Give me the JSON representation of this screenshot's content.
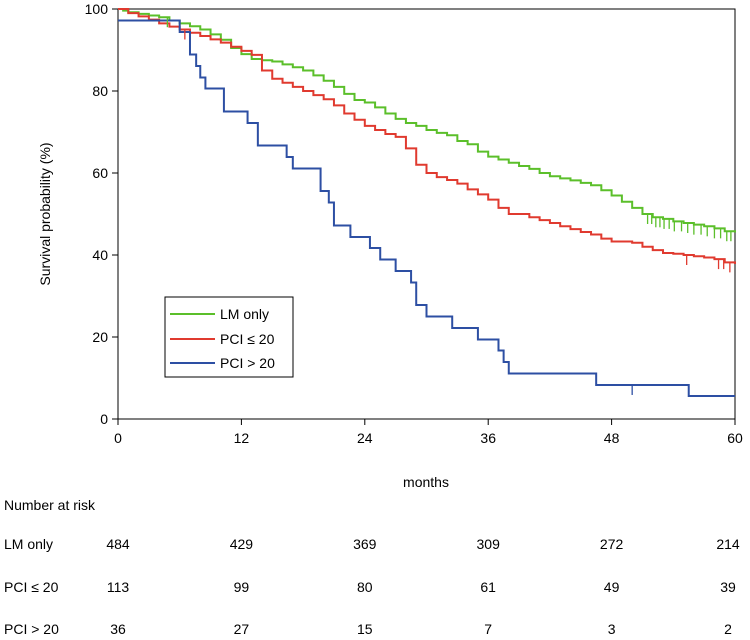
{
  "chart_data": {
    "type": "line",
    "xlabel": "months",
    "ylabel": "Survival probability (%)",
    "xlim": [
      0,
      60
    ],
    "ylim": [
      0,
      100
    ],
    "x_ticks": [
      0,
      12,
      24,
      36,
      48,
      60
    ],
    "y_ticks": [
      0,
      20,
      40,
      60,
      80,
      100
    ],
    "grid": false,
    "legend_position": "lower-left",
    "series": [
      {
        "name": "LM only",
        "color": "#5bbf2a",
        "steps": [
          [
            0,
            100
          ],
          [
            0.5,
            99.6
          ],
          [
            1,
            99.2
          ],
          [
            2,
            98.8
          ],
          [
            3,
            98.4
          ],
          [
            4,
            98
          ],
          [
            5,
            97.2
          ],
          [
            6,
            96.5
          ],
          [
            7,
            95.8
          ],
          [
            8,
            95
          ],
          [
            9,
            93.8
          ],
          [
            10,
            92.5
          ],
          [
            11,
            90.5
          ],
          [
            12,
            89
          ],
          [
            13,
            87.8
          ],
          [
            14,
            87.5
          ],
          [
            15,
            87.2
          ],
          [
            16,
            86.5
          ],
          [
            17,
            85.8
          ],
          [
            18,
            85
          ],
          [
            19,
            83.8
          ],
          [
            20,
            82.5
          ],
          [
            21,
            81
          ],
          [
            22,
            79.3
          ],
          [
            23,
            77.8
          ],
          [
            24,
            77.2
          ],
          [
            25,
            76
          ],
          [
            26,
            74.5
          ],
          [
            27,
            73.2
          ],
          [
            28,
            72.2
          ],
          [
            29,
            71.5
          ],
          [
            30,
            70.5
          ],
          [
            31,
            69.8
          ],
          [
            32,
            69.2
          ],
          [
            33,
            67.8
          ],
          [
            34,
            67
          ],
          [
            35,
            65.2
          ],
          [
            36,
            64
          ],
          [
            37,
            63.3
          ],
          [
            38,
            62.5
          ],
          [
            39,
            61.7
          ],
          [
            40,
            61
          ],
          [
            41,
            60
          ],
          [
            42,
            59.2
          ],
          [
            43,
            58.7
          ],
          [
            44,
            58.2
          ],
          [
            45,
            57.6
          ],
          [
            46,
            57
          ],
          [
            47,
            55.8
          ],
          [
            48,
            54.5
          ],
          [
            49,
            53
          ],
          [
            50,
            51.5
          ],
          [
            51,
            50
          ],
          [
            52,
            49.2
          ],
          [
            53,
            48.8
          ],
          [
            54,
            48.2
          ],
          [
            55,
            47.8
          ],
          [
            56,
            47.4
          ],
          [
            57,
            47
          ],
          [
            58,
            46.5
          ],
          [
            59,
            45.8
          ],
          [
            60,
            45.5
          ]
        ],
        "censor_x": [
          4.8,
          51.5,
          51.9,
          52.3,
          52.7,
          53.1,
          53.6,
          54.1,
          54.8,
          55.4,
          56,
          56.7,
          57.3,
          58,
          58.6,
          59.2,
          59.6
        ]
      },
      {
        "name": "PCI ≤ 20",
        "color": "#e03a2f",
        "steps": [
          [
            0,
            100
          ],
          [
            1,
            99
          ],
          [
            2,
            98.2
          ],
          [
            3,
            97.4
          ],
          [
            4,
            96.5
          ],
          [
            5,
            95.7
          ],
          [
            6,
            95
          ],
          [
            7,
            94.2
          ],
          [
            8,
            93.4
          ],
          [
            9,
            92.6
          ],
          [
            10,
            91.8
          ],
          [
            11,
            90.8
          ],
          [
            12,
            89.8
          ],
          [
            13,
            88.8
          ],
          [
            14,
            85
          ],
          [
            15,
            83
          ],
          [
            16,
            82
          ],
          [
            17,
            81
          ],
          [
            18,
            80
          ],
          [
            19,
            79
          ],
          [
            20,
            78
          ],
          [
            21,
            76.5
          ],
          [
            22,
            74.5
          ],
          [
            23,
            73
          ],
          [
            24,
            71.5
          ],
          [
            25,
            70.5
          ],
          [
            26,
            69.5
          ],
          [
            27,
            68.8
          ],
          [
            28,
            66
          ],
          [
            29,
            62
          ],
          [
            30,
            60
          ],
          [
            31,
            59
          ],
          [
            32,
            58.3
          ],
          [
            33,
            57.4
          ],
          [
            34,
            56
          ],
          [
            35,
            54.8
          ],
          [
            36,
            53.5
          ],
          [
            37,
            51.5
          ],
          [
            38,
            50
          ],
          [
            39,
            50
          ],
          [
            40,
            49.2
          ],
          [
            41,
            48.5
          ],
          [
            42,
            47.8
          ],
          [
            43,
            47
          ],
          [
            44,
            46.3
          ],
          [
            45,
            45.6
          ],
          [
            46,
            45
          ],
          [
            47,
            44
          ],
          [
            48,
            43.3
          ],
          [
            49,
            43.3
          ],
          [
            50,
            43
          ],
          [
            51,
            42
          ],
          [
            52,
            41.2
          ],
          [
            53,
            40.5
          ],
          [
            54,
            40.3
          ],
          [
            55,
            40
          ],
          [
            56,
            39.7
          ],
          [
            57,
            39.4
          ],
          [
            58,
            39
          ],
          [
            59,
            38.2
          ],
          [
            60,
            37.8
          ]
        ],
        "censor_x": [
          6.5,
          55.3,
          58.4,
          58.9,
          59.5
        ]
      },
      {
        "name": "PCI > 20",
        "color": "#2d4fa3",
        "steps": [
          [
            0,
            97.2
          ],
          [
            6,
            94.4
          ],
          [
            7,
            88.9
          ],
          [
            7.6,
            86.1
          ],
          [
            8,
            83.3
          ],
          [
            8.5,
            80.6
          ],
          [
            10.3,
            75
          ],
          [
            12.6,
            72.2
          ],
          [
            13.6,
            66.7
          ],
          [
            16.4,
            63.9
          ],
          [
            17,
            61.1
          ],
          [
            19.7,
            55.6
          ],
          [
            20.5,
            52.8
          ],
          [
            21,
            47.2
          ],
          [
            22.6,
            44.4
          ],
          [
            24.5,
            41.7
          ],
          [
            25.5,
            38.9
          ],
          [
            27,
            36.1
          ],
          [
            28.5,
            33.3
          ],
          [
            29,
            27.8
          ],
          [
            30,
            25
          ],
          [
            32.5,
            22.2
          ],
          [
            35,
            19.4
          ],
          [
            37,
            16.7
          ],
          [
            37.5,
            13.9
          ],
          [
            38,
            11.1
          ],
          [
            46.5,
            8.3
          ],
          [
            55.5,
            5.6
          ],
          [
            60,
            5.6
          ]
        ],
        "censor_x": [
          50
        ]
      }
    ],
    "risk_table": {
      "title": "Number at risk",
      "time_points": [
        0,
        12,
        24,
        36,
        48,
        60
      ],
      "rows": [
        {
          "label": "LM only",
          "values": [
            484,
            429,
            369,
            309,
            272,
            214
          ]
        },
        {
          "label": "PCI ≤ 20",
          "values": [
            113,
            99,
            80,
            61,
            49,
            39
          ]
        },
        {
          "label": "PCI > 20",
          "values": [
            36,
            27,
            15,
            7,
            3,
            2
          ]
        }
      ]
    }
  }
}
